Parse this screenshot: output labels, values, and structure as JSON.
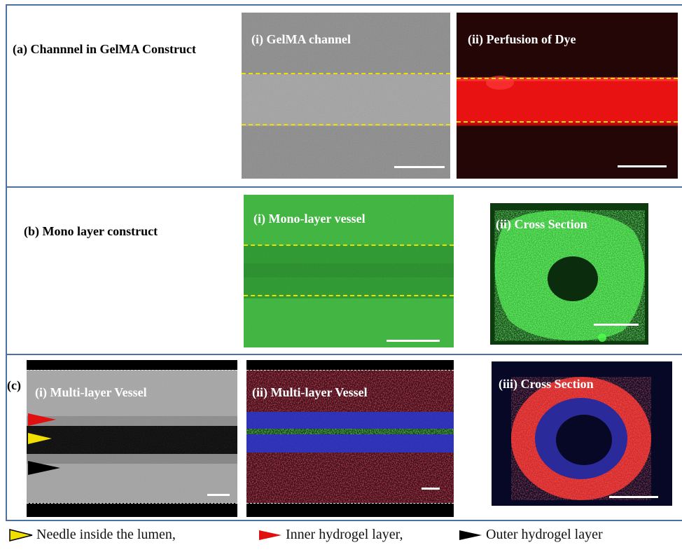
{
  "rows": [
    {
      "label": "(a) Channnel in GelMA Construct",
      "panels": [
        {
          "title": "(i) GelMA channel"
        },
        {
          "title": "(ii) Perfusion  of Dye"
        }
      ]
    },
    {
      "label": "(b) Mono layer construct",
      "panels": [
        {
          "title": "(i)  Mono-layer vessel"
        },
        {
          "title": "(ii) Cross Section"
        }
      ]
    },
    {
      "label": "(c)",
      "panels": [
        {
          "title": "(i) Multi-layer Vessel"
        },
        {
          "title": "(ii) Multi-layer  Vessel"
        },
        {
          "title": "(iii) Cross Section"
        }
      ]
    }
  ],
  "legend": [
    {
      "icon": "yellow-arrowhead-icon",
      "color": "#f0e000",
      "label": "Needle inside the lumen,"
    },
    {
      "icon": "red-arrowhead-icon",
      "color": "#e01010",
      "label": "Inner hydrogel layer,"
    },
    {
      "icon": "black-arrowhead-icon",
      "color": "#000000",
      "label": "Outer hydrogel layer"
    }
  ],
  "colors": {
    "frame": "#4d6fa3",
    "guide_dash": "#f0e000",
    "fluor_red": "#ff2a2a",
    "fluor_green": "#3cc43c",
    "fluor_blue": "#2a35c8"
  }
}
